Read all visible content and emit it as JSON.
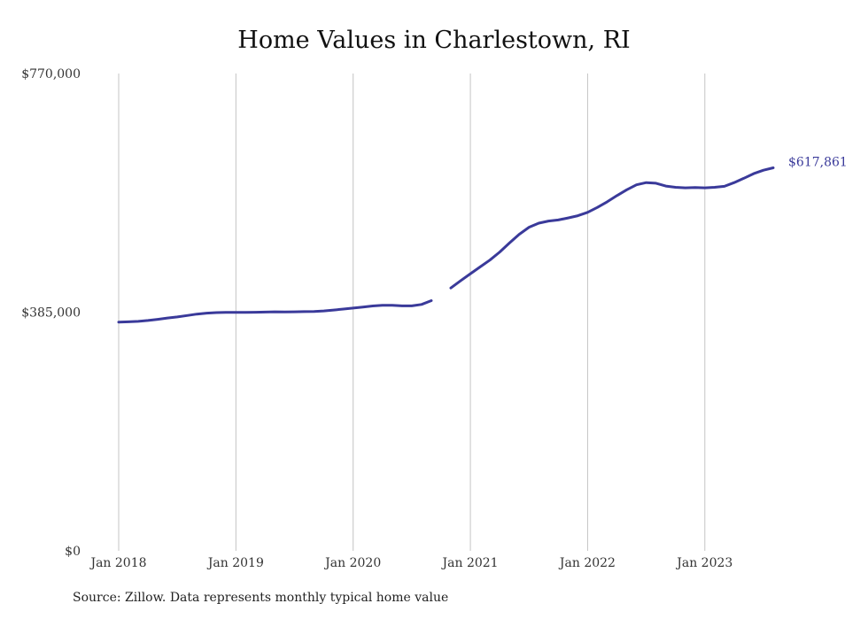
{
  "chart_data": {
    "type": "line",
    "title": "Home Values in Charlestown, RI",
    "xlabel": "",
    "ylabel": "",
    "ylim": [
      0,
      770000
    ],
    "y_ticks": [
      {
        "value": 0,
        "label": "$0"
      },
      {
        "value": 385000,
        "label": "$385,000"
      },
      {
        "value": 770000,
        "label": "$770,000"
      }
    ],
    "x_ticks": [
      {
        "date": "2018-01",
        "label": "Jan 2018"
      },
      {
        "date": "2019-01",
        "label": "Jan 2019"
      },
      {
        "date": "2020-01",
        "label": "Jan 2020"
      },
      {
        "date": "2021-01",
        "label": "Jan 2021"
      },
      {
        "date": "2022-01",
        "label": "Jan 2022"
      },
      {
        "date": "2023-01",
        "label": "Jan 2023"
      }
    ],
    "xlim": [
      "2018-01",
      "2023-08"
    ],
    "grid": {
      "vertical": true,
      "horizontal": false
    },
    "line_color": "#3a3a9a",
    "end_label": {
      "date": "2023-08",
      "text": "$617,861"
    },
    "series": [
      {
        "points": [
          {
            "x": "2018-01",
            "y": 369000
          },
          {
            "x": "2018-02",
            "y": 369400
          },
          {
            "x": "2018-03",
            "y": 370200
          },
          {
            "x": "2018-04",
            "y": 371500
          },
          {
            "x": "2018-05",
            "y": 373500
          },
          {
            "x": "2018-06",
            "y": 375500
          },
          {
            "x": "2018-07",
            "y": 377300
          },
          {
            "x": "2018-08",
            "y": 379500
          },
          {
            "x": "2018-09",
            "y": 381800
          },
          {
            "x": "2018-10",
            "y": 383400
          },
          {
            "x": "2018-11",
            "y": 384300
          },
          {
            "x": "2018-12",
            "y": 384700
          },
          {
            "x": "2019-01",
            "y": 384600
          },
          {
            "x": "2019-02",
            "y": 384500
          },
          {
            "x": "2019-03",
            "y": 384800
          },
          {
            "x": "2019-04",
            "y": 385200
          },
          {
            "x": "2019-05",
            "y": 385500
          },
          {
            "x": "2019-06",
            "y": 385400
          },
          {
            "x": "2019-07",
            "y": 385500
          },
          {
            "x": "2019-08",
            "y": 385800
          },
          {
            "x": "2019-09",
            "y": 386200
          },
          {
            "x": "2019-10",
            "y": 387000
          },
          {
            "x": "2019-11",
            "y": 388500
          },
          {
            "x": "2019-12",
            "y": 390000
          },
          {
            "x": "2020-01",
            "y": 391600
          },
          {
            "x": "2020-02",
            "y": 393300
          },
          {
            "x": "2020-03",
            "y": 395000
          },
          {
            "x": "2020-04",
            "y": 396100
          },
          {
            "x": "2020-05",
            "y": 396000
          },
          {
            "x": "2020-06",
            "y": 395200
          },
          {
            "x": "2020-07",
            "y": 395100
          },
          {
            "x": "2020-08",
            "y": 397500
          },
          {
            "x": "2020-09",
            "y": 403500
          },
          {
            "x": "2020-10",
            "y": null
          },
          {
            "x": "2020-11",
            "y": 424000
          },
          {
            "x": "2020-12",
            "y": 435500
          },
          {
            "x": "2021-01",
            "y": 447000
          },
          {
            "x": "2021-02",
            "y": 458000
          },
          {
            "x": "2021-03",
            "y": 469000
          },
          {
            "x": "2021-04",
            "y": 482000
          },
          {
            "x": "2021-05",
            "y": 496500
          },
          {
            "x": "2021-06",
            "y": 510500
          },
          {
            "x": "2021-07",
            "y": 522000
          },
          {
            "x": "2021-08",
            "y": 528500
          },
          {
            "x": "2021-09",
            "y": 532000
          },
          {
            "x": "2021-10",
            "y": 533700
          },
          {
            "x": "2021-11",
            "y": 537000
          },
          {
            "x": "2021-12",
            "y": 540500
          },
          {
            "x": "2022-01",
            "y": 546000
          },
          {
            "x": "2022-02",
            "y": 554000
          },
          {
            "x": "2022-03",
            "y": 563000
          },
          {
            "x": "2022-04",
            "y": 573000
          },
          {
            "x": "2022-05",
            "y": 582500
          },
          {
            "x": "2022-06",
            "y": 590500
          },
          {
            "x": "2022-07",
            "y": 594000
          },
          {
            "x": "2022-08",
            "y": 593000
          },
          {
            "x": "2022-09",
            "y": 588500
          },
          {
            "x": "2022-10",
            "y": 586500
          },
          {
            "x": "2022-11",
            "y": 585500
          },
          {
            "x": "2022-12",
            "y": 586000
          },
          {
            "x": "2023-01",
            "y": 585500
          },
          {
            "x": "2023-02",
            "y": 586500
          },
          {
            "x": "2023-03",
            "y": 588000
          },
          {
            "x": "2023-04",
            "y": 594000
          },
          {
            "x": "2023-05",
            "y": 601000
          },
          {
            "x": "2023-06",
            "y": 608500
          },
          {
            "x": "2023-07",
            "y": 614000
          },
          {
            "x": "2023-08",
            "y": 617861
          }
        ]
      }
    ]
  },
  "footer": {
    "source": "Source: Zillow. Data represents monthly typical home value"
  }
}
